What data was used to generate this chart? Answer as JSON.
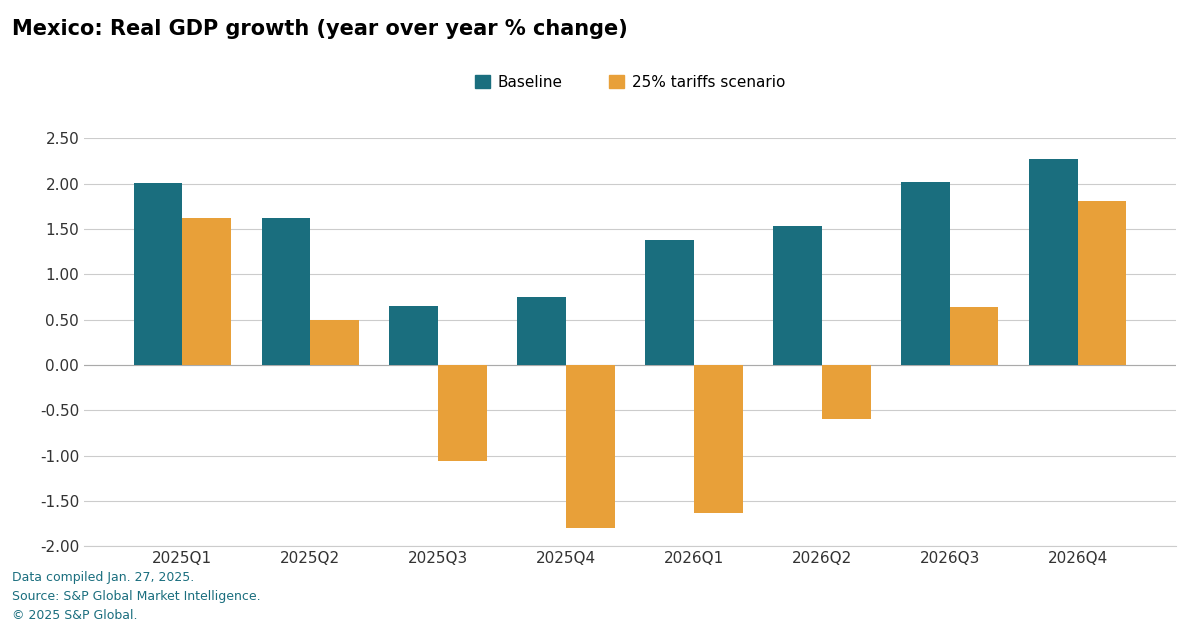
{
  "title": "Mexico: Real GDP growth (year over year % change)",
  "categories": [
    "2025Q1",
    "2025Q2",
    "2025Q3",
    "2025Q4",
    "2026Q1",
    "2026Q2",
    "2026Q3",
    "2026Q4"
  ],
  "baseline": [
    2.01,
    1.62,
    0.65,
    0.75,
    1.38,
    1.53,
    2.02,
    2.27
  ],
  "tariffs": [
    1.62,
    0.49,
    -1.06,
    -1.8,
    -1.63,
    -0.6,
    0.64,
    1.81
  ],
  "baseline_color": "#1a6e7e",
  "tariffs_color": "#e8a039",
  "background_color": "#ffffff",
  "ylim": [
    -2.0,
    2.5
  ],
  "yticks": [
    -2.0,
    -1.5,
    -1.0,
    -0.5,
    0.0,
    0.5,
    1.0,
    1.5,
    2.0,
    2.5
  ],
  "legend_baseline": "Baseline",
  "legend_tariffs": "25% tariffs scenario",
  "footnote_line1": "Data compiled Jan. 27, 2025.",
  "footnote_line2": "Source: S&P Global Market Intelligence.",
  "footnote_line3": "© 2025 S&P Global.",
  "footnote_color": "#1a6e7e",
  "title_fontsize": 15,
  "legend_fontsize": 11,
  "tick_fontsize": 11,
  "footnote_fontsize": 9,
  "bar_width": 0.38
}
